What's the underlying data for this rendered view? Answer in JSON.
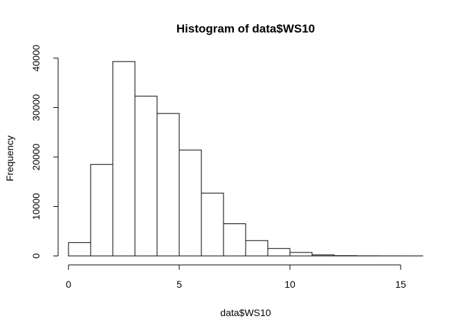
{
  "chart_data": {
    "type": "bar",
    "title": "Histogram of data$WS10",
    "xlabel": "data$WS10",
    "ylabel": "Frequency",
    "bin_edges": [
      0,
      1,
      2,
      3,
      4,
      5,
      6,
      7,
      8,
      9,
      10,
      11,
      12,
      13,
      14,
      15,
      16
    ],
    "values": [
      2700,
      18500,
      39300,
      32300,
      28800,
      21400,
      12700,
      6500,
      3100,
      1500,
      700,
      200,
      50,
      20,
      10,
      5
    ],
    "xlim": [
      0,
      16
    ],
    "ylim": [
      0,
      40000
    ],
    "x_ticks": [
      0,
      5,
      10,
      15
    ],
    "y_ticks": [
      0,
      10000,
      20000,
      30000,
      40000
    ],
    "x_tick_labels": [
      "0",
      "5",
      "10",
      "15"
    ],
    "y_tick_labels": [
      "0",
      "10000",
      "20000",
      "30000",
      "40000"
    ],
    "grid": false,
    "bar_fill": "#ffffff",
    "bar_stroke": "#000000"
  }
}
